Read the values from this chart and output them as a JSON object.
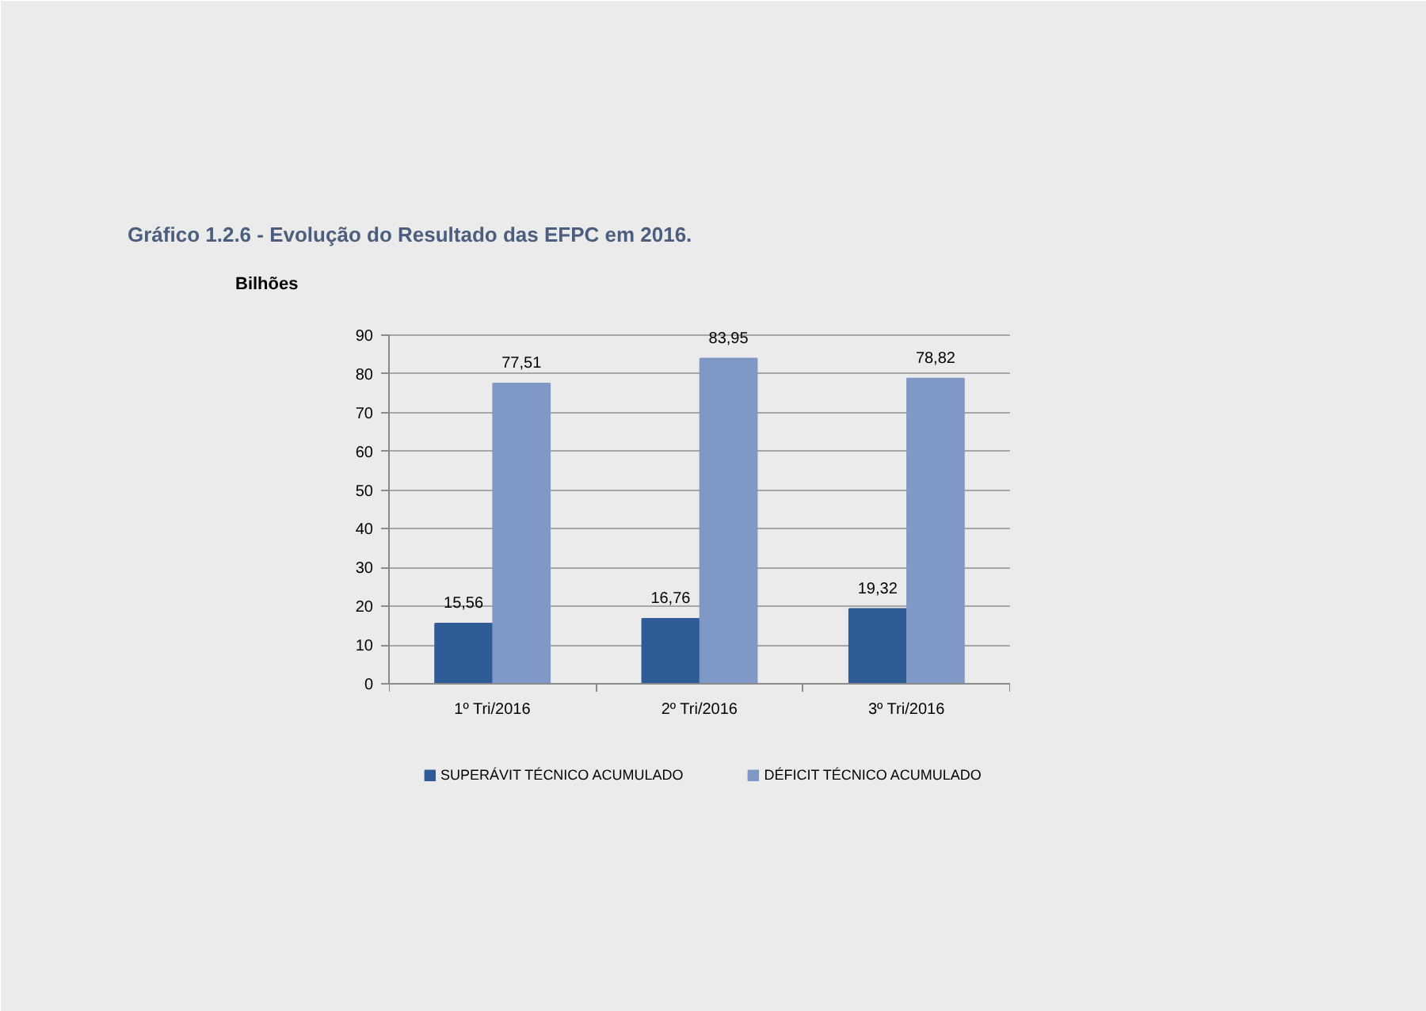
{
  "chart_data": {
    "type": "bar",
    "title": "Gráfico 1.2.6 - Evolução do Resultado das EFPC em 2016.",
    "ylabel": "Bilhões",
    "categories": [
      "1º Tri/2016",
      "2º Tri/2016",
      "3º Tri/2016"
    ],
    "series": [
      {
        "name": "SUPERÁVIT TÉCNICO ACUMULADO",
        "color": "#2f5b96",
        "values": [
          15.56,
          16.76,
          19.32
        ],
        "value_labels": [
          "15,56",
          "16,76",
          "19,32"
        ]
      },
      {
        "name": "DÉFICIT TÉCNICO ACUMULADO",
        "color": "#7f98c6",
        "values": [
          77.51,
          83.95,
          78.82
        ],
        "value_labels": [
          "77,51",
          "83,95",
          "78,82"
        ]
      }
    ],
    "ylim": [
      0,
      90
    ],
    "yticks": [
      0,
      10,
      20,
      30,
      40,
      50,
      60,
      70,
      80,
      90
    ],
    "grid": "y",
    "legend": "bottom"
  }
}
